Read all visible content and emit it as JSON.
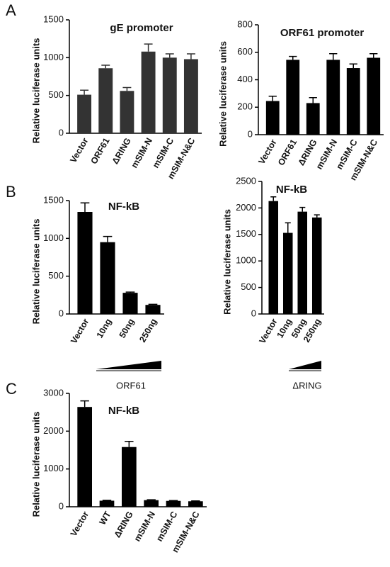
{
  "chart_data": [
    {
      "type": "bar",
      "panel_label": "A",
      "title": "gE promoter",
      "ylabel": "Relative luciferase units",
      "categories": [
        "Vector",
        "ORF61",
        "ΔRING",
        "mSIM-N",
        "mSIM-C",
        "mSIM-N&C"
      ],
      "values": [
        510,
        860,
        560,
        1080,
        1000,
        980
      ],
      "errors": [
        60,
        40,
        45,
        100,
        50,
        70
      ],
      "color": "#333333",
      "ylim": [
        0,
        1500
      ],
      "yticks": [
        0,
        500,
        1000,
        1500
      ]
    },
    {
      "type": "bar",
      "title": "ORF61 promoter",
      "ylabel": "Relative luciferase units",
      "categories": [
        "Vector",
        "ORF61",
        "ΔRING",
        "mSIM-N",
        "mSIM-C",
        "mSIM-N&C"
      ],
      "values": [
        245,
        545,
        230,
        545,
        485,
        560
      ],
      "errors": [
        35,
        25,
        40,
        45,
        30,
        30
      ],
      "color": "#000000",
      "ylim": [
        0,
        800
      ],
      "yticks": [
        0,
        200,
        400,
        600,
        800
      ]
    },
    {
      "type": "bar",
      "panel_label": "B",
      "title": "NF-kB",
      "ylabel": "Relative luciferase units",
      "xlabel": "ORF61",
      "categories": [
        "Vector",
        "10ng",
        "50ng",
        "250ng"
      ],
      "values": [
        1350,
        950,
        280,
        120
      ],
      "errors": [
        120,
        75,
        10,
        8
      ],
      "color": "#000000",
      "ylim": [
        0,
        1500
      ],
      "yticks": [
        0,
        500,
        1000,
        1500
      ]
    },
    {
      "type": "bar",
      "title": "NF-kB",
      "ylabel": "Relative luciferase units",
      "xlabel": "ΔRING",
      "categories": [
        "Vector",
        "10ng",
        "50ng",
        "250ng"
      ],
      "values": [
        2130,
        1530,
        1930,
        1820
      ],
      "errors": [
        80,
        190,
        80,
        50
      ],
      "color": "#000000",
      "ylim": [
        0,
        2500
      ],
      "yticks": [
        0,
        500,
        1000,
        1500,
        2000,
        2500
      ]
    },
    {
      "type": "bar",
      "panel_label": "C",
      "title": "NF-kB",
      "ylabel": "Relative luciferase units",
      "categories": [
        "Vector",
        "WT",
        "ΔRING",
        "mSIM-N",
        "mSIM-C",
        "mSIM-N&C"
      ],
      "values": [
        2640,
        160,
        1580,
        175,
        155,
        145
      ],
      "errors": [
        160,
        10,
        150,
        10,
        10,
        10
      ],
      "color": "#000000",
      "ylim": [
        0,
        3000
      ],
      "yticks": [
        0,
        1000,
        2000,
        3000
      ]
    }
  ]
}
